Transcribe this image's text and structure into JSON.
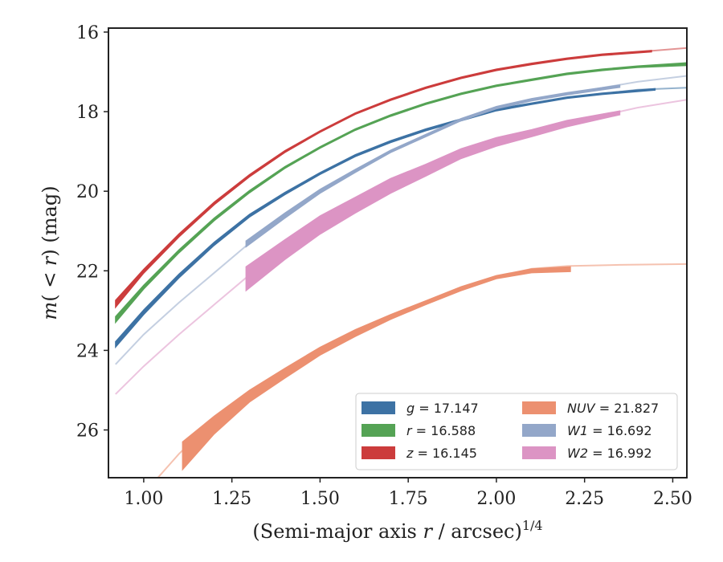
{
  "chart_data": {
    "type": "line",
    "xlabel_parts": [
      "(Semi-major axis ",
      "r",
      " / arcsec)",
      "1/4"
    ],
    "ylabel_parts": [
      "m",
      "( < ",
      "r",
      ") (mag)"
    ],
    "xlim": [
      0.9,
      2.54
    ],
    "ylim": [
      27.2,
      15.9
    ],
    "y_inverted": true,
    "xticks": [
      "1.00",
      "1.25",
      "1.50",
      "1.75",
      "2.00",
      "2.25",
      "2.50"
    ],
    "xtick_values": [
      1.0,
      1.25,
      1.5,
      1.75,
      2.0,
      2.25,
      2.5
    ],
    "yticks": [
      "16",
      "18",
      "20",
      "22",
      "24",
      "26"
    ],
    "ytick_values": [
      16,
      18,
      20,
      22,
      24,
      26
    ],
    "legend_position": "lower-right",
    "legend_columns": 2,
    "series": [
      {
        "id": "g",
        "name": "g",
        "legend_label": "g = 17.147",
        "color": "#3d72a4",
        "model": [
          [
            0.92,
            23.8
          ],
          [
            1.0,
            23.0
          ],
          [
            1.1,
            22.1
          ],
          [
            1.2,
            21.3
          ],
          [
            1.3,
            20.6
          ],
          [
            1.4,
            20.05
          ],
          [
            1.5,
            19.55
          ],
          [
            1.6,
            19.1
          ],
          [
            1.7,
            18.75
          ],
          [
            1.8,
            18.45
          ],
          [
            1.9,
            18.2
          ],
          [
            2.0,
            17.95
          ],
          [
            2.1,
            17.8
          ],
          [
            2.2,
            17.65
          ],
          [
            2.3,
            17.55
          ],
          [
            2.4,
            17.45
          ],
          [
            2.54,
            17.4
          ]
        ],
        "obs_upper": [
          [
            0.92,
            23.78
          ],
          [
            1.0,
            22.98
          ],
          [
            1.1,
            22.08
          ],
          [
            1.2,
            21.28
          ],
          [
            1.3,
            20.58
          ],
          [
            1.4,
            20.03
          ],
          [
            1.5,
            19.53
          ],
          [
            1.6,
            19.08
          ],
          [
            1.7,
            18.73
          ],
          [
            1.8,
            18.43
          ],
          [
            1.9,
            18.18
          ],
          [
            2.0,
            17.93
          ],
          [
            2.1,
            17.78
          ],
          [
            2.2,
            17.63
          ],
          [
            2.3,
            17.53
          ],
          [
            2.45,
            17.42
          ]
        ],
        "obs_lower": [
          [
            0.92,
            23.92
          ],
          [
            1.0,
            23.1
          ],
          [
            1.1,
            22.18
          ],
          [
            1.2,
            21.36
          ],
          [
            1.3,
            20.65
          ],
          [
            1.4,
            20.09
          ],
          [
            1.5,
            19.58
          ],
          [
            1.6,
            19.13
          ],
          [
            1.7,
            18.78
          ],
          [
            1.8,
            18.48
          ],
          [
            1.9,
            18.23
          ],
          [
            2.0,
            17.98
          ],
          [
            2.1,
            17.82
          ],
          [
            2.2,
            17.67
          ],
          [
            2.3,
            17.57
          ],
          [
            2.45,
            17.46
          ]
        ]
      },
      {
        "id": "r",
        "name": "r",
        "legend_label": "r = 16.588",
        "color": "#55a355",
        "model": [
          [
            0.92,
            23.2
          ],
          [
            1.0,
            22.4
          ],
          [
            1.1,
            21.5
          ],
          [
            1.2,
            20.7
          ],
          [
            1.3,
            20.0
          ],
          [
            1.4,
            19.4
          ],
          [
            1.5,
            18.9
          ],
          [
            1.6,
            18.45
          ],
          [
            1.7,
            18.1
          ],
          [
            1.8,
            17.8
          ],
          [
            1.9,
            17.55
          ],
          [
            2.0,
            17.35
          ],
          [
            2.1,
            17.2
          ],
          [
            2.2,
            17.05
          ],
          [
            2.3,
            16.95
          ],
          [
            2.4,
            16.87
          ],
          [
            2.54,
            16.8
          ]
        ],
        "obs_upper": [
          [
            0.92,
            23.15
          ],
          [
            1.0,
            22.36
          ],
          [
            1.1,
            21.47
          ],
          [
            1.2,
            20.67
          ],
          [
            1.3,
            19.98
          ],
          [
            1.4,
            19.38
          ],
          [
            1.5,
            18.88
          ],
          [
            1.6,
            18.43
          ],
          [
            1.7,
            18.08
          ],
          [
            1.8,
            17.78
          ],
          [
            1.9,
            17.53
          ],
          [
            2.0,
            17.33
          ],
          [
            2.1,
            17.18
          ],
          [
            2.2,
            17.03
          ],
          [
            2.3,
            16.93
          ],
          [
            2.4,
            16.85
          ],
          [
            2.54,
            16.77
          ]
        ],
        "obs_lower": [
          [
            0.92,
            23.3
          ],
          [
            1.0,
            22.46
          ],
          [
            1.1,
            21.55
          ],
          [
            1.2,
            20.74
          ],
          [
            1.3,
            20.04
          ],
          [
            1.4,
            19.43
          ],
          [
            1.5,
            18.92
          ],
          [
            1.6,
            18.47
          ],
          [
            1.7,
            18.12
          ],
          [
            1.8,
            17.82
          ],
          [
            1.9,
            17.57
          ],
          [
            2.0,
            17.37
          ],
          [
            2.1,
            17.22
          ],
          [
            2.2,
            17.07
          ],
          [
            2.3,
            16.97
          ],
          [
            2.4,
            16.89
          ],
          [
            2.54,
            16.84
          ]
        ]
      },
      {
        "id": "z",
        "name": "z",
        "legend_label": "z = 16.145",
        "color": "#cc3c3c",
        "model": [
          [
            0.92,
            22.8
          ],
          [
            1.0,
            22.0
          ],
          [
            1.1,
            21.1
          ],
          [
            1.2,
            20.3
          ],
          [
            1.3,
            19.6
          ],
          [
            1.4,
            19.0
          ],
          [
            1.5,
            18.5
          ],
          [
            1.6,
            18.05
          ],
          [
            1.7,
            17.7
          ],
          [
            1.8,
            17.4
          ],
          [
            1.9,
            17.15
          ],
          [
            2.0,
            16.95
          ],
          [
            2.1,
            16.8
          ],
          [
            2.2,
            16.67
          ],
          [
            2.3,
            16.57
          ],
          [
            2.4,
            16.5
          ],
          [
            2.54,
            16.4
          ]
        ],
        "obs_upper": [
          [
            0.92,
            22.74
          ],
          [
            1.0,
            21.96
          ],
          [
            1.1,
            21.07
          ],
          [
            1.2,
            20.27
          ],
          [
            1.3,
            19.58
          ],
          [
            1.4,
            18.98
          ],
          [
            1.5,
            18.48
          ],
          [
            1.6,
            18.03
          ],
          [
            1.7,
            17.68
          ],
          [
            1.8,
            17.38
          ],
          [
            1.9,
            17.13
          ],
          [
            2.0,
            16.93
          ],
          [
            2.1,
            16.78
          ],
          [
            2.2,
            16.65
          ],
          [
            2.3,
            16.55
          ],
          [
            2.44,
            16.46
          ]
        ],
        "obs_lower": [
          [
            0.92,
            22.92
          ],
          [
            1.0,
            22.06
          ],
          [
            1.1,
            21.15
          ],
          [
            1.2,
            20.34
          ],
          [
            1.3,
            19.64
          ],
          [
            1.4,
            19.03
          ],
          [
            1.5,
            18.52
          ],
          [
            1.6,
            18.07
          ],
          [
            1.7,
            17.72
          ],
          [
            1.8,
            17.42
          ],
          [
            1.9,
            17.17
          ],
          [
            2.0,
            16.97
          ],
          [
            2.1,
            16.82
          ],
          [
            2.2,
            16.69
          ],
          [
            2.3,
            16.59
          ],
          [
            2.44,
            16.5
          ]
        ]
      },
      {
        "id": "NUV",
        "name": "NUV",
        "legend_label": "NUV = 21.827",
        "color": "#ec9070",
        "model": [
          [
            1.04,
            27.2
          ],
          [
            1.1,
            26.6
          ],
          [
            1.2,
            25.75
          ],
          [
            1.3,
            25.1
          ],
          [
            1.4,
            24.55
          ],
          [
            1.5,
            24.0
          ],
          [
            1.6,
            23.55
          ],
          [
            1.7,
            23.15
          ],
          [
            1.8,
            22.8
          ],
          [
            1.9,
            22.45
          ],
          [
            2.0,
            22.15
          ],
          [
            2.1,
            21.95
          ],
          [
            2.2,
            21.88
          ],
          [
            2.35,
            21.85
          ],
          [
            2.54,
            21.83
          ]
        ],
        "obs_upper": [
          [
            1.11,
            26.3
          ],
          [
            1.2,
            25.65
          ],
          [
            1.3,
            25.0
          ],
          [
            1.4,
            24.45
          ],
          [
            1.5,
            23.92
          ],
          [
            1.6,
            23.48
          ],
          [
            1.7,
            23.1
          ],
          [
            1.8,
            22.75
          ],
          [
            1.9,
            22.4
          ],
          [
            2.0,
            22.12
          ],
          [
            2.1,
            21.95
          ],
          [
            2.21,
            21.9
          ]
        ],
        "obs_lower": [
          [
            1.11,
            27.0
          ],
          [
            1.2,
            26.1
          ],
          [
            1.3,
            25.3
          ],
          [
            1.4,
            24.7
          ],
          [
            1.5,
            24.12
          ],
          [
            1.6,
            23.65
          ],
          [
            1.7,
            23.22
          ],
          [
            1.8,
            22.85
          ],
          [
            1.9,
            22.5
          ],
          [
            2.0,
            22.2
          ],
          [
            2.1,
            22.05
          ],
          [
            2.21,
            22.02
          ]
        ]
      },
      {
        "id": "W1",
        "name": "W1",
        "legend_label": "W1 = 16.692",
        "color": "#93a7c9",
        "model": [
          [
            0.92,
            24.35
          ],
          [
            1.0,
            23.6
          ],
          [
            1.1,
            22.8
          ],
          [
            1.2,
            22.05
          ],
          [
            1.3,
            21.3
          ],
          [
            1.4,
            20.6
          ],
          [
            1.5,
            20.0
          ],
          [
            1.6,
            19.5
          ],
          [
            1.7,
            19.0
          ],
          [
            1.8,
            18.6
          ],
          [
            1.9,
            18.2
          ],
          [
            2.0,
            17.9
          ],
          [
            2.1,
            17.7
          ],
          [
            2.2,
            17.55
          ],
          [
            2.3,
            17.4
          ],
          [
            2.4,
            17.25
          ],
          [
            2.54,
            17.1
          ]
        ],
        "obs_upper": [
          [
            1.29,
            21.25
          ],
          [
            1.4,
            20.55
          ],
          [
            1.5,
            19.95
          ],
          [
            1.6,
            19.45
          ],
          [
            1.7,
            18.97
          ],
          [
            1.8,
            18.57
          ],
          [
            1.9,
            18.17
          ],
          [
            2.0,
            17.87
          ],
          [
            2.1,
            17.67
          ],
          [
            2.2,
            17.52
          ],
          [
            2.35,
            17.33
          ]
        ],
        "obs_lower": [
          [
            1.29,
            21.4
          ],
          [
            1.4,
            20.68
          ],
          [
            1.5,
            20.05
          ],
          [
            1.6,
            19.53
          ],
          [
            1.7,
            19.03
          ],
          [
            1.8,
            18.63
          ],
          [
            1.9,
            18.23
          ],
          [
            2.0,
            17.93
          ],
          [
            2.1,
            17.73
          ],
          [
            2.2,
            17.58
          ],
          [
            2.35,
            17.39
          ]
        ]
      },
      {
        "id": "W2",
        "name": "W2",
        "legend_label": "W2 = 16.992",
        "color": "#dc94c4",
        "model": [
          [
            0.92,
            25.1
          ],
          [
            1.0,
            24.4
          ],
          [
            1.1,
            23.6
          ],
          [
            1.2,
            22.85
          ],
          [
            1.3,
            22.1
          ],
          [
            1.4,
            21.4
          ],
          [
            1.5,
            20.8
          ],
          [
            1.6,
            20.3
          ],
          [
            1.7,
            19.8
          ],
          [
            1.8,
            19.4
          ],
          [
            1.9,
            19.0
          ],
          [
            2.0,
            18.7
          ],
          [
            2.1,
            18.5
          ],
          [
            2.2,
            18.3
          ],
          [
            2.3,
            18.1
          ],
          [
            2.4,
            17.9
          ],
          [
            2.54,
            17.7
          ]
        ],
        "obs_upper": [
          [
            1.29,
            21.9
          ],
          [
            1.4,
            21.22
          ],
          [
            1.5,
            20.62
          ],
          [
            1.6,
            20.15
          ],
          [
            1.7,
            19.68
          ],
          [
            1.8,
            19.32
          ],
          [
            1.9,
            18.93
          ],
          [
            2.0,
            18.65
          ],
          [
            2.1,
            18.45
          ],
          [
            2.2,
            18.22
          ],
          [
            2.35,
            17.98
          ]
        ],
        "obs_lower": [
          [
            1.29,
            22.5
          ],
          [
            1.4,
            21.72
          ],
          [
            1.5,
            21.08
          ],
          [
            1.6,
            20.55
          ],
          [
            1.7,
            20.05
          ],
          [
            1.8,
            19.62
          ],
          [
            1.9,
            19.18
          ],
          [
            2.0,
            18.87
          ],
          [
            2.1,
            18.63
          ],
          [
            2.2,
            18.38
          ],
          [
            2.35,
            18.08
          ]
        ]
      }
    ]
  }
}
